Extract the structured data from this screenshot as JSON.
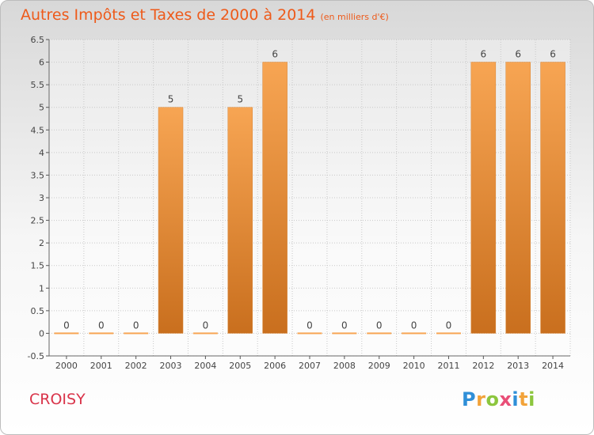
{
  "title": {
    "main": "Autres Impôts et Taxes de 2000 à 2014",
    "unit": "(en milliers d'€)"
  },
  "place": "CROISY",
  "logo": {
    "letters": [
      {
        "ch": "P",
        "color": "#2f8fd8"
      },
      {
        "ch": "r",
        "color": "#f2a33a"
      },
      {
        "ch": "o",
        "color": "#8cc63e"
      },
      {
        "ch": "x",
        "color": "#e94e77"
      },
      {
        "ch": "i",
        "color": "#2f8fd8"
      },
      {
        "ch": "t",
        "color": "#f2a33a"
      },
      {
        "ch": "i",
        "color": "#8cc63e"
      }
    ]
  },
  "colors": {
    "bar_top": "#f7a553",
    "bar_bottom": "#c96f1e",
    "grid": "#c8c8c8"
  },
  "chart_data": {
    "type": "bar",
    "categories": [
      "2000",
      "2001",
      "2002",
      "2003",
      "2004",
      "2005",
      "2006",
      "2007",
      "2008",
      "2009",
      "2010",
      "2011",
      "2012",
      "2013",
      "2014"
    ],
    "values": [
      0,
      0,
      0,
      5,
      0,
      5,
      6,
      0,
      0,
      0,
      0,
      0,
      6,
      6,
      6
    ],
    "data_labels": [
      "0",
      "0",
      "0",
      "5",
      "0",
      "5",
      "6",
      "0",
      "0",
      "0",
      "0",
      "0",
      "6",
      "6",
      "6"
    ],
    "ylim": [
      -0.5,
      6.5
    ],
    "yticks": [
      "-0.5",
      "0",
      "0.5",
      "1",
      "1.5",
      "2",
      "2.5",
      "3",
      "3.5",
      "4",
      "4.5",
      "5",
      "5.5",
      "6",
      "6.5"
    ],
    "grid": true
  }
}
